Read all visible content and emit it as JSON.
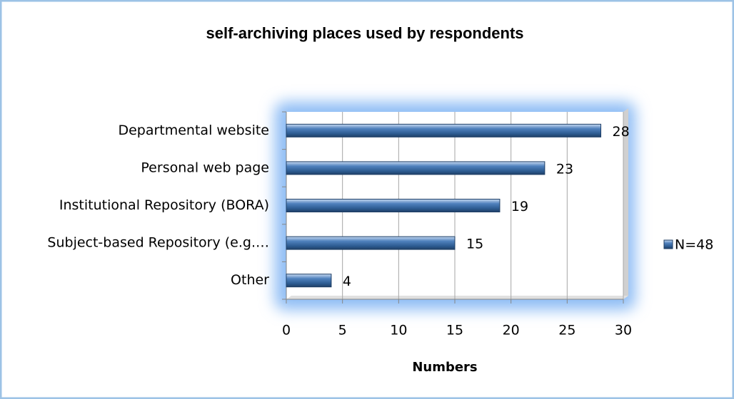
{
  "chart_data": {
    "type": "bar",
    "orientation": "horizontal",
    "title": "self-archiving places used by respondents",
    "x_label": "Numbers",
    "categories": [
      "Departmental website",
      "Personal web page",
      "Institutional Repository (BORA)",
      "Subject-based Repository (e.g.…",
      "Other"
    ],
    "series": [
      {
        "name": "N=48",
        "color": "#4f81bd",
        "values": [
          28,
          23,
          19,
          15,
          4
        ]
      }
    ],
    "xlim": [
      0,
      30
    ],
    "xticks": [
      0,
      5,
      10,
      15,
      20,
      25,
      30
    ],
    "grid": true,
    "legend": "right"
  }
}
